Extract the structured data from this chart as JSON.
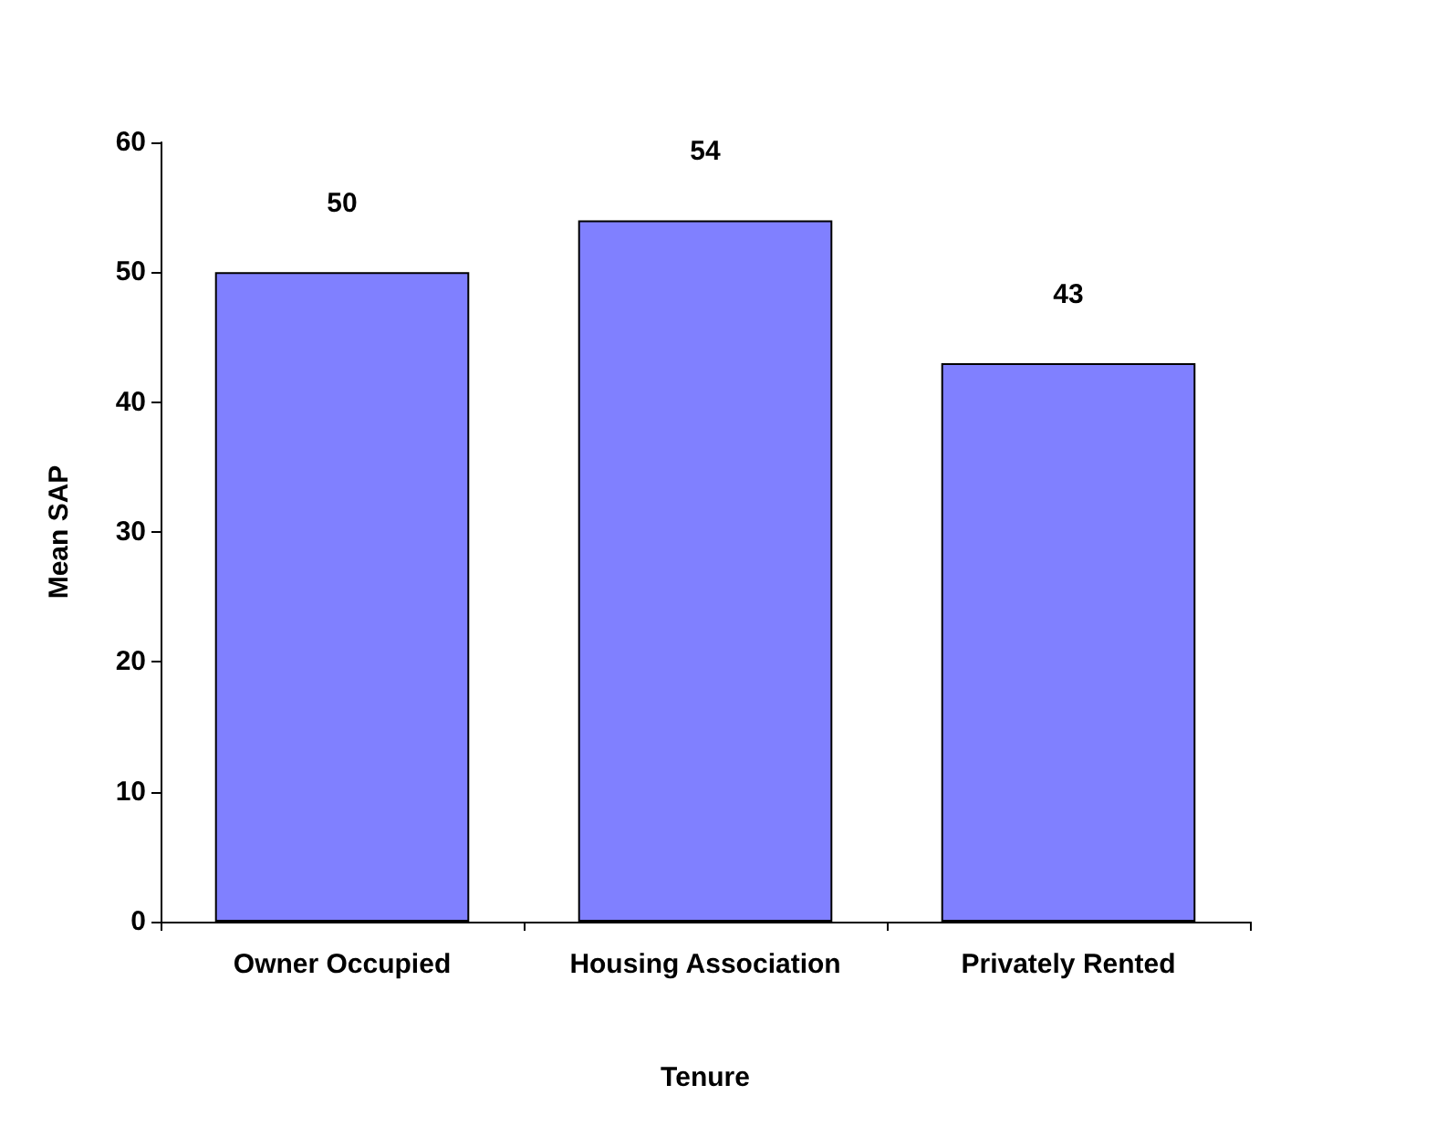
{
  "chart_data": {
    "type": "bar",
    "xlabel": "Tenure",
    "ylabel": "Mean SAP",
    "categories": [
      "Owner Occupied",
      "Housing Association",
      "Privately Rented"
    ],
    "values": [
      50,
      54,
      43
    ],
    "color": "#8080ff",
    "ylim": [
      0,
      60
    ],
    "yticks": [
      0,
      10,
      20,
      30,
      40,
      50,
      60
    ],
    "grid": false,
    "data_labels": true
  }
}
